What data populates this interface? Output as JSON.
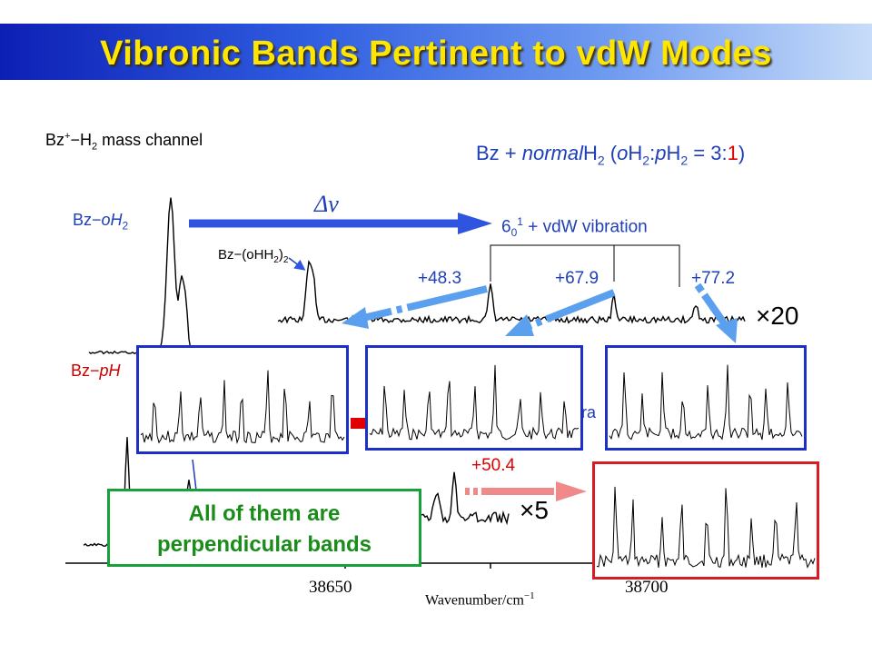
{
  "title": "Vibronic Bands Pertinent to vdW Modes",
  "mass_channel": "mass channel",
  "condition": {
    "prefix": "Bz + ",
    "normal": "normal",
    "ratio_a": "3",
    "ratio_b": "1"
  },
  "species": {
    "oh2": "oH",
    "dimer": "(oH",
    "ph2": "pH"
  },
  "transition_label": "+ vdW vibration",
  "transition_sub": "0",
  "transition_sup": "1",
  "transition_num": "6",
  "delta_label": "Δν",
  "hidden_fragment": "ora",
  "callout_text": [
    "All of them are",
    "perpendicular bands"
  ],
  "chart_data": {
    "type": "line",
    "xlabel": "Wavenumber/cm",
    "xlabel_exp": "−1",
    "xticks": [
      "38650",
      "38700"
    ],
    "series": [
      {
        "name": "Bz−oH2",
        "multiplier": "×20",
        "peaks": [
          "+48.3",
          "+67.9",
          "+77.2"
        ]
      },
      {
        "name": "Bz−pH2",
        "multiplier": "×5",
        "peaks": [
          "+50.4"
        ]
      }
    ],
    "colors": {
      "accent_blue": "#2f55e0",
      "light_blue": "#5aa0ee",
      "red": "#e00000",
      "green": "#18a03a",
      "inset_border_blue": "#1e2fc8",
      "inset_border_red": "#d81c24"
    }
  }
}
